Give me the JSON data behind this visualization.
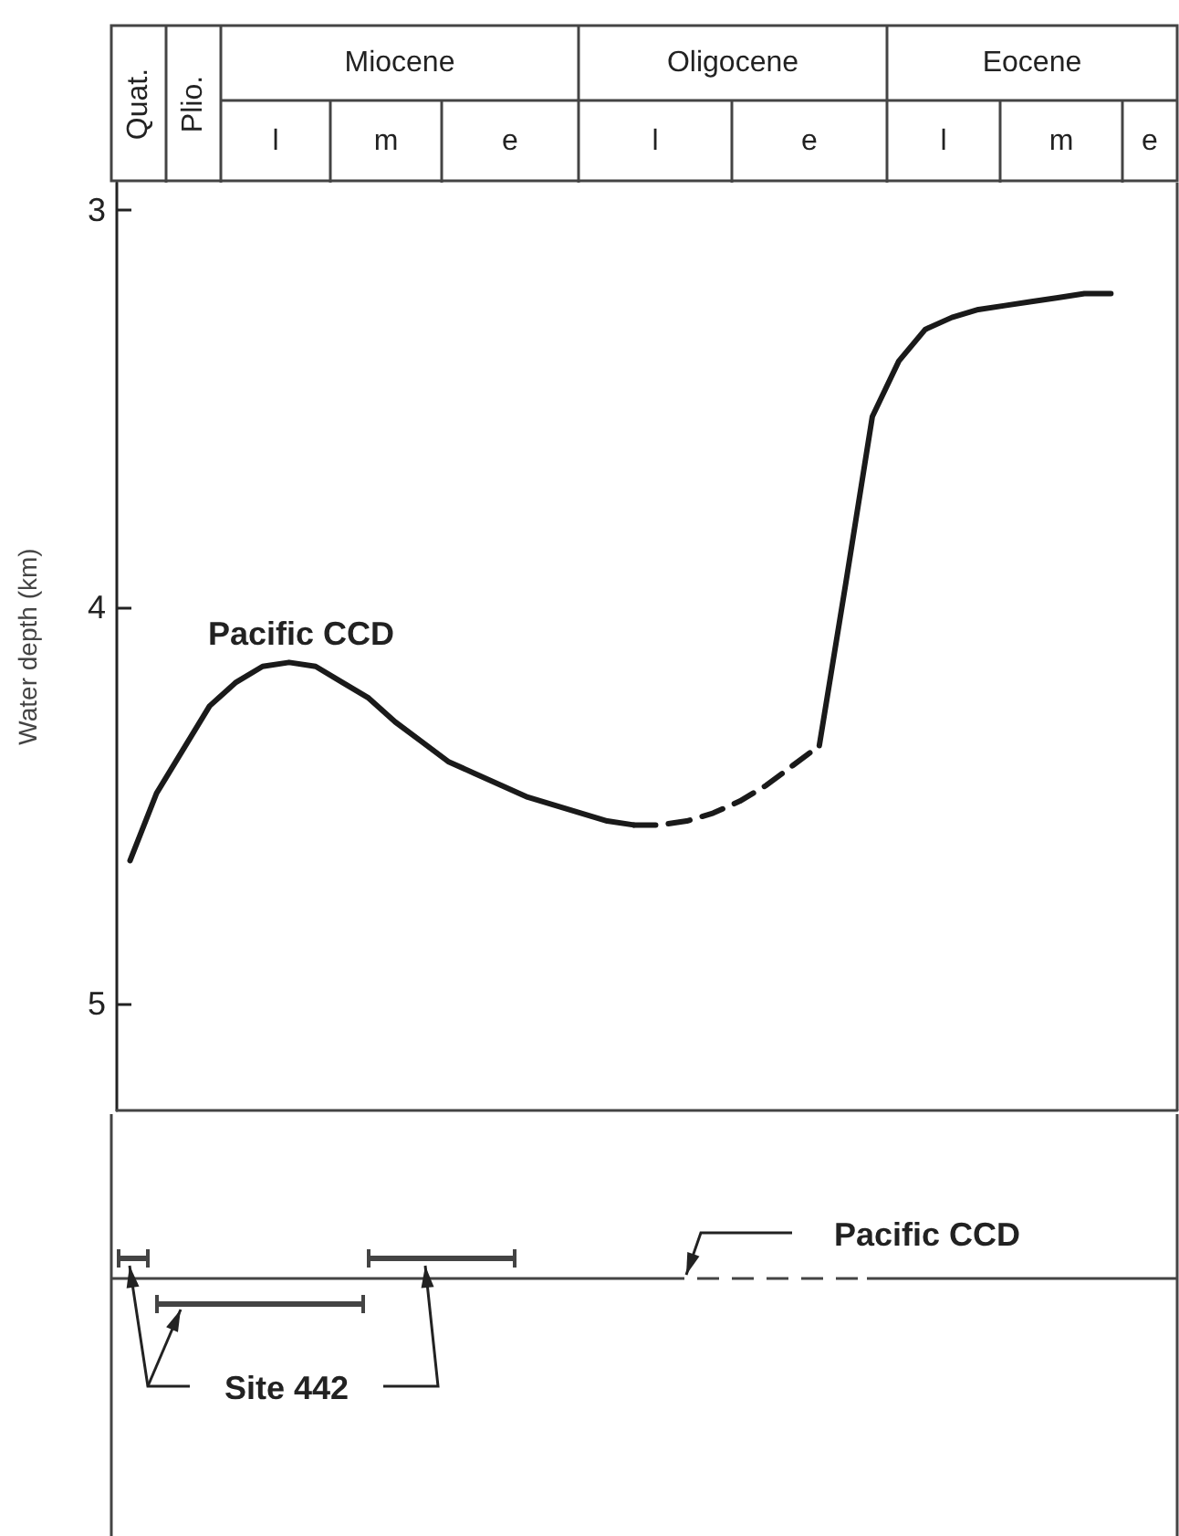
{
  "chart_data": {
    "type": "line",
    "ylabel": "Water depth (km)",
    "categories": [
      null,
      null,
      null,
      null,
      null,
      null,
      null,
      null,
      null,
      null,
      null,
      null,
      null,
      null,
      null,
      null,
      null,
      null,
      null,
      null,
      null,
      null,
      null,
      null,
      null,
      null,
      null,
      null,
      null,
      null,
      null,
      null,
      null,
      null,
      null,
      null,
      null,
      null,
      null,
      null
    ],
    "series": [
      {
        "name": "Pacific CCD",
        "color": "#1a1a1a",
        "line_style": "solid",
        "values": [
          4.64,
          4.47,
          4.36,
          4.25,
          4.19,
          4.15,
          4.14,
          4.15,
          4.19,
          4.23,
          4.29,
          4.34,
          4.39,
          4.42,
          4.45,
          4.48,
          4.5,
          4.52,
          4.54,
          4.55,
          null,
          null,
          null,
          null,
          null,
          null,
          null,
          null,
          null,
          null,
          null,
          null,
          null,
          null,
          null,
          null,
          null,
          null,
          null,
          null
        ]
      },
      {
        "color": "#1a1a1a",
        "line_style": "solid",
        "values": [
          null,
          null,
          null,
          null,
          null,
          null,
          null,
          null,
          null,
          null,
          null,
          null,
          null,
          null,
          null,
          null,
          null,
          null,
          null,
          null,
          null,
          null,
          null,
          null,
          null,
          null,
          4.35,
          3.94,
          3.52,
          3.38,
          3.3,
          3.27,
          3.25,
          3.24,
          3.23,
          3.22,
          3.21,
          3.21,
          null,
          null
        ]
      },
      {
        "color": "#1a1a1a",
        "line_style": "dashed",
        "values": [
          null,
          null,
          null,
          null,
          null,
          null,
          null,
          null,
          null,
          null,
          null,
          null,
          null,
          null,
          null,
          null,
          null,
          null,
          null,
          4.55,
          4.55,
          4.54,
          4.52,
          4.49,
          4.45,
          4.4,
          4.35,
          null,
          null,
          null,
          null,
          null,
          null,
          null,
          null,
          null,
          null,
          null,
          null,
          null
        ]
      }
    ],
    "ylim": [
      5.27,
      2.93
    ],
    "yticks": [
      3,
      4,
      5
    ],
    "grid": false,
    "legend": false,
    "tick_labels": "y",
    "annotations": [
      "Quat.",
      "Plio.",
      "Miocene",
      "l",
      "m",
      "e",
      "Oligocene",
      "l",
      "e",
      "Eocene",
      "l",
      "m",
      "e",
      "Pacific CCD",
      "Site 442"
    ]
  }
}
